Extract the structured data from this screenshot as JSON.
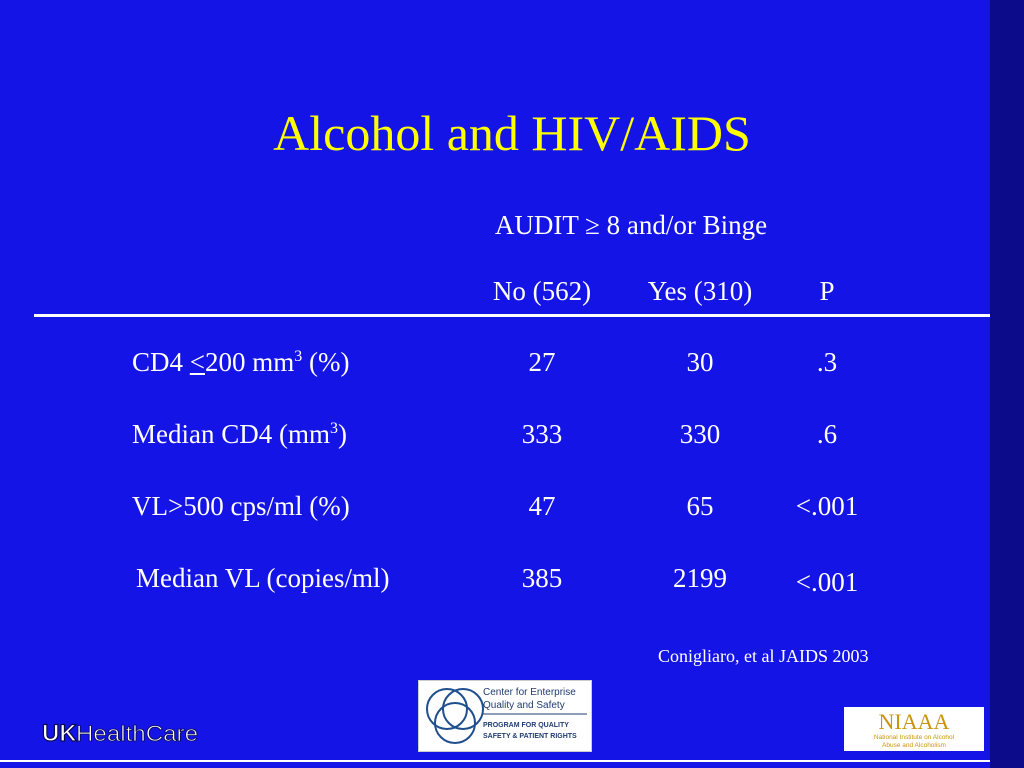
{
  "title": "Alcohol and HIV/AIDS",
  "subhead": "AUDIT ≥ 8 and/or Binge",
  "columns": {
    "no": "No (562)",
    "yes": "Yes (310)",
    "p": "P"
  },
  "rows": [
    {
      "label_before": "CD4 ",
      "label_lt": "<",
      "label_mid": "200 mm",
      "label_sup": "3",
      "label_after": " (%)",
      "no": "27",
      "yes": "30",
      "p": ".3"
    },
    {
      "label_before": "Median CD4 (mm",
      "label_sup": "3",
      "label_after": ")",
      "no": "333",
      "yes": "330",
      "p": ".6"
    },
    {
      "label": "VL>500 cps/ml (%)",
      "no": "47",
      "yes": "65",
      "p": "<.001"
    },
    {
      "label": "Median VL (copies/ml)",
      "no": "385",
      "yes": "2199",
      "p": "<.001"
    }
  ],
  "citation": "Conigliaro, et al JAIDS 2003",
  "logos": {
    "uk": {
      "uk_text": "UK",
      "healthcare_text": "HealthCare"
    },
    "center": {
      "line1": "Center for Enterprise",
      "line2": "Quality and Safety",
      "line3": "PROGRAM FOR QUALITY",
      "line4": "SAFETY & PATIENT RIGHTS"
    },
    "niaaa": {
      "acronym": "NIAAA",
      "line1": "National Institute on Alcohol",
      "line2": "Abuse and Alcoholism"
    }
  },
  "colors": {
    "background": "#1414e6",
    "title": "#ffff00",
    "text": "#ffffff",
    "niaaa_text": "#c8960a"
  }
}
